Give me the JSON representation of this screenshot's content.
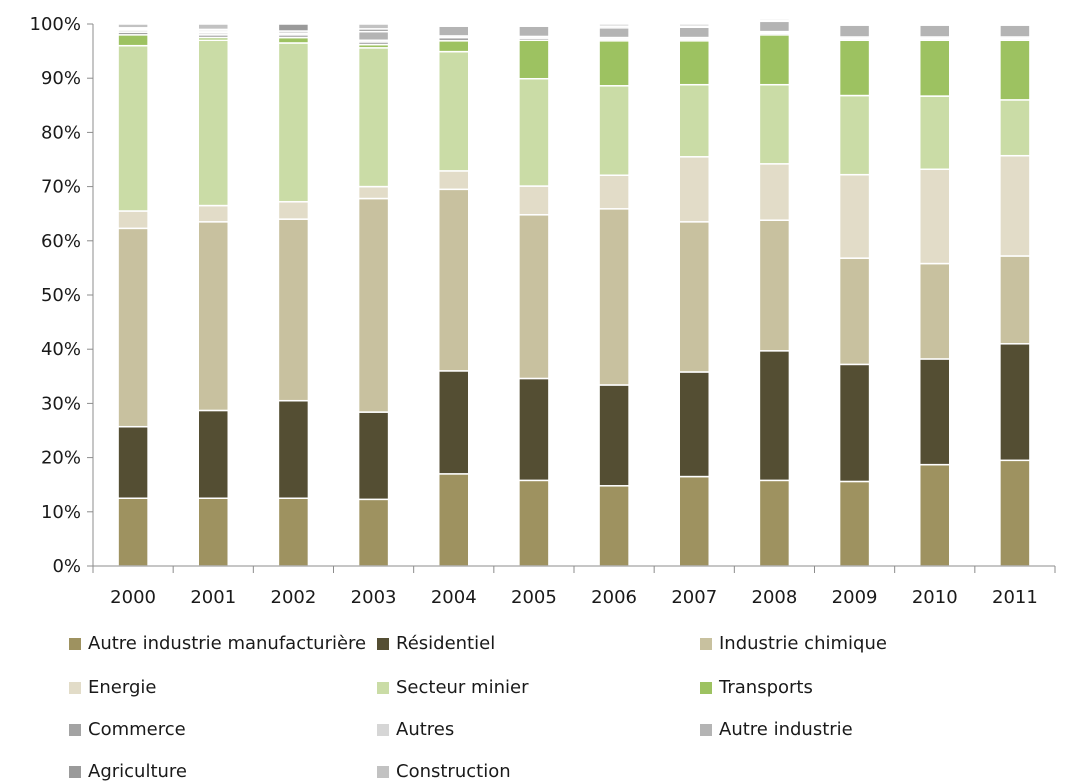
{
  "chart_data": {
    "type": "bar",
    "stacked": true,
    "percent": true,
    "categories": [
      "2000",
      "2001",
      "2002",
      "2003",
      "2004",
      "2005",
      "2006",
      "2007",
      "2008",
      "2009",
      "2010",
      "2011"
    ],
    "y_ticks": [
      "0%",
      "10%",
      "20%",
      "30%",
      "40%",
      "50%",
      "60%",
      "70%",
      "80%",
      "90%",
      "100%"
    ],
    "ylim": [
      0,
      100
    ],
    "grid": false,
    "legend_position": "bottom",
    "series": [
      {
        "name": "Autre industrie manufacturière",
        "color": "#9e9260",
        "values": [
          12.5,
          12.5,
          12.5,
          12.3,
          17.0,
          15.8,
          14.8,
          16.5,
          15.8,
          15.6,
          18.7,
          19.5
        ]
      },
      {
        "name": "Résidentiel",
        "color": "#544e33",
        "values": [
          13.2,
          16.2,
          18.0,
          16.1,
          19.0,
          18.8,
          18.6,
          19.3,
          23.9,
          21.6,
          19.5,
          21.5
        ]
      },
      {
        "name": "Industrie chimique",
        "color": "#c8c19f",
        "values": [
          36.6,
          34.8,
          33.5,
          39.4,
          33.5,
          30.2,
          32.5,
          27.7,
          24.1,
          19.6,
          17.6,
          16.2
        ]
      },
      {
        "name": "Energie",
        "color": "#e2dcc8",
        "values": [
          3.2,
          3.0,
          3.2,
          2.2,
          3.4,
          5.3,
          6.2,
          12.0,
          10.4,
          15.4,
          17.4,
          18.5
        ]
      },
      {
        "name": "Secteur minier",
        "color": "#cadca6",
        "values": [
          30.5,
          30.5,
          29.3,
          25.6,
          22.0,
          19.8,
          16.5,
          13.3,
          14.6,
          14.6,
          13.5,
          10.3
        ]
      },
      {
        "name": "Transports",
        "color": "#9dc261",
        "values": [
          2.0,
          0.5,
          1.0,
          0.6,
          2.0,
          7.1,
          8.3,
          8.1,
          9.2,
          10.2,
          10.3,
          11.0
        ]
      },
      {
        "name": "Commerce",
        "color": "#a3a3a3",
        "values": [
          0.5,
          0.5,
          0.5,
          0.5,
          0.6,
          0.4,
          0.3,
          0.3,
          0.3,
          0.3,
          0.3,
          0.3
        ]
      },
      {
        "name": "Autres",
        "color": "#d6d6d6",
        "values": [
          0.4,
          0.4,
          0.3,
          0.3,
          0.3,
          0.3,
          0.3,
          0.3,
          0.3,
          0.3,
          0.3,
          0.3
        ]
      },
      {
        "name": "Autre industrie",
        "color": "#b4b4b4",
        "values": [
          0.2,
          0.3,
          0.4,
          1.6,
          1.8,
          1.9,
          1.8,
          1.9,
          1.9,
          2.2,
          2.2,
          2.2
        ]
      },
      {
        "name": "Agriculture",
        "color": "#9a9a9a",
        "values": [
          0.2,
          0.3,
          1.3,
          0.5,
          0.2,
          0.2,
          0.3,
          0.2,
          0.2,
          0.2,
          0.2,
          0.2
        ]
      },
      {
        "name": "Construction",
        "color": "#c2c2c2",
        "values": [
          0.7,
          1.0,
          0.0,
          0.9,
          0.2,
          0.2,
          0.4,
          0.4,
          0.3,
          0.0,
          0.0,
          0.0
        ]
      }
    ]
  }
}
